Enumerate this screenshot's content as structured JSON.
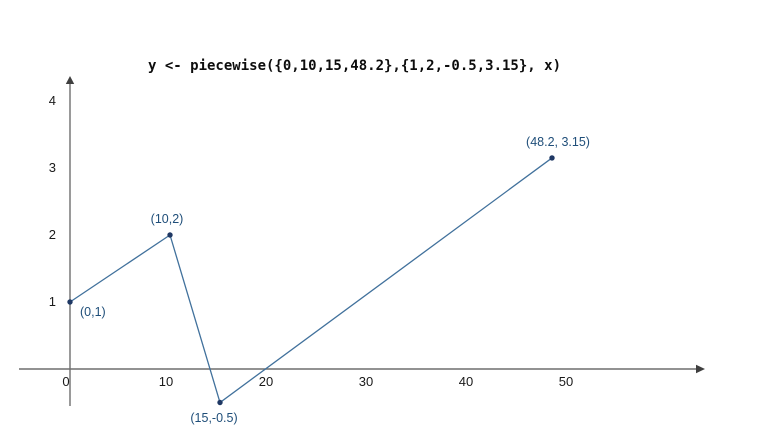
{
  "chart_data": {
    "type": "line",
    "title": "y <- piecewise({0,10,15,48.2},{1,2,-0.5,3.15}, x)",
    "x": [
      0,
      10,
      15,
      48.2
    ],
    "y": [
      1,
      2,
      -0.5,
      3.15
    ],
    "points": [
      {
        "x": 0,
        "y": 1,
        "label": "(0,1)"
      },
      {
        "x": 10,
        "y": 2,
        "label": "(10,2)"
      },
      {
        "x": 15,
        "y": -0.5,
        "label": "(15,-0.5)"
      },
      {
        "x": 48.2,
        "y": 3.15,
        "label": "(48.2, 3.15)"
      }
    ],
    "x_ticks": [
      0,
      10,
      20,
      30,
      40,
      50
    ],
    "y_ticks": [
      1,
      2,
      3,
      4
    ],
    "xlim": [
      -5,
      63
    ],
    "ylim": [
      -0.6,
      4.35
    ],
    "xlabel": "",
    "ylabel": "",
    "grid": false,
    "legend": false,
    "line_color": "#41719C",
    "point_color": "#1F3864",
    "label_color": "#1F4E79",
    "axis_color": "#6e6e6e",
    "background": "#FFFFFF"
  }
}
